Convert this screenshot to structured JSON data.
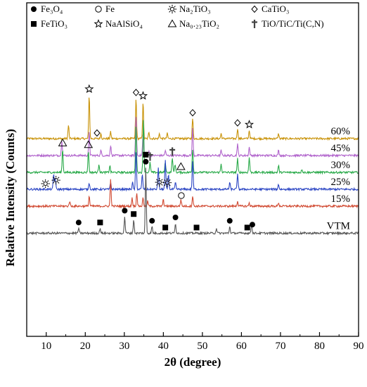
{
  "chart_data": {
    "type": "line",
    "xlabel": "2θ (degree)",
    "ylabel": "Relative Intensity (Counts)",
    "xlim": [
      5,
      90
    ],
    "xticks": [
      "10",
      "20",
      "30",
      "40",
      "50",
      "60",
      "70",
      "80",
      "90"
    ],
    "grid": false,
    "legend_position": "top",
    "legend": [
      {
        "symbol": "filled-circle",
        "label": "Fe₃O₄"
      },
      {
        "symbol": "open-circle",
        "label": "Fe"
      },
      {
        "symbol": "sun",
        "label": "Na₂TiO₃"
      },
      {
        "symbol": "open-diamond",
        "label": "CaTiO₃"
      },
      {
        "symbol": "filled-square",
        "label": "FeTiO₃"
      },
      {
        "symbol": "open-star",
        "label": "NaAlSiO₄"
      },
      {
        "symbol": "open-triangle",
        "label": "Na₀.₂₃TiO₂"
      },
      {
        "symbol": "dagger",
        "label": "TiO/TiC/Ti(C,N)"
      }
    ],
    "series": [
      {
        "name": "60%",
        "color": "#c9930a",
        "baseline": 2.0,
        "peaks": [
          [
            15.7,
            0.8
          ],
          [
            21.0,
            2.6
          ],
          [
            24.0,
            0.3
          ],
          [
            26.5,
            0.4
          ],
          [
            33.0,
            2.4
          ],
          [
            34.8,
            2.2
          ],
          [
            36.3,
            0.4
          ],
          [
            39.0,
            0.3
          ],
          [
            41.0,
            0.3
          ],
          [
            47.5,
            1.2
          ],
          [
            54.8,
            0.3
          ],
          [
            59.0,
            0.6
          ],
          [
            62.0,
            0.5
          ],
          [
            69.5,
            0.3
          ]
        ]
      },
      {
        "name": "45%",
        "color": "#b164cc",
        "baseline": 1.0,
        "peaks": [
          [
            14.0,
            0.9
          ],
          [
            21.0,
            1.4
          ],
          [
            24.0,
            0.3
          ],
          [
            26.5,
            0.6
          ],
          [
            33.0,
            2.4
          ],
          [
            34.8,
            1.3
          ],
          [
            36.3,
            0.3
          ],
          [
            40.5,
            0.3
          ],
          [
            47.5,
            1.6
          ],
          [
            54.8,
            0.3
          ],
          [
            59.0,
            0.7
          ],
          [
            62.0,
            0.5
          ],
          [
            69.5,
            0.3
          ]
        ]
      },
      {
        "name": "30%",
        "color": "#2aaa4a",
        "baseline": 0.0,
        "peaks": [
          [
            14.2,
            1.4
          ],
          [
            20.8,
            1.3
          ],
          [
            23.5,
            0.5
          ],
          [
            26.3,
            0.4
          ],
          [
            33.0,
            2.8
          ],
          [
            34.9,
            3.2
          ],
          [
            36.6,
            0.6
          ],
          [
            40.5,
            0.6
          ],
          [
            42.3,
            0.9
          ],
          [
            43.0,
            0.5
          ],
          [
            47.5,
            1.4
          ],
          [
            54.8,
            0.5
          ],
          [
            59.0,
            0.8
          ],
          [
            62.0,
            0.9
          ],
          [
            69.5,
            0.4
          ],
          [
            75.5,
            0.2
          ]
        ]
      },
      {
        "name": "25%",
        "color": "#2c46c4",
        "baseline": -1.0,
        "peaks": [
          [
            11.9,
            0.9
          ],
          [
            12.3,
            0.7
          ],
          [
            21.0,
            0.4
          ],
          [
            26.5,
            0.4
          ],
          [
            32.1,
            0.4
          ],
          [
            33.0,
            2.3
          ],
          [
            34.6,
            0.9
          ],
          [
            38.7,
            1.3
          ],
          [
            40.5,
            1.7
          ],
          [
            41.3,
            0.9
          ],
          [
            43.1,
            0.4
          ],
          [
            47.5,
            1.7
          ],
          [
            57.0,
            0.4
          ],
          [
            59.0,
            0.9
          ],
          [
            69.5,
            0.3
          ]
        ]
      },
      {
        "name": "15%",
        "color": "#d14a32",
        "baseline": -2.0,
        "peaks": [
          [
            16.0,
            0.3
          ],
          [
            21.0,
            0.6
          ],
          [
            26.5,
            1.6
          ],
          [
            32.0,
            0.5
          ],
          [
            33.2,
            0.8
          ],
          [
            34.8,
            0.5
          ],
          [
            36.0,
            0.3
          ],
          [
            40.0,
            0.4
          ],
          [
            44.5,
            0.4
          ],
          [
            47.5,
            0.6
          ],
          [
            59.0,
            0.3
          ],
          [
            62.0,
            0.2
          ],
          [
            69.5,
            0.2
          ]
        ]
      },
      {
        "name": "VTM",
        "color": "#555555",
        "baseline": -3.6,
        "peaks": [
          [
            18.3,
            0.3
          ],
          [
            23.8,
            0.3
          ],
          [
            30.1,
            1.0
          ],
          [
            32.4,
            0.8
          ],
          [
            35.5,
            3.9
          ],
          [
            37.1,
            0.4
          ],
          [
            43.1,
            0.6
          ],
          [
            53.6,
            0.3
          ],
          [
            57.0,
            0.4
          ],
          [
            62.6,
            0.6
          ]
        ]
      }
    ],
    "markers": [
      {
        "series": "60%",
        "symbol": "open-star",
        "x": 21.0
      },
      {
        "series": "60%",
        "symbol": "open-diamond",
        "x": 23.0
      },
      {
        "series": "60%",
        "symbol": "open-diamond",
        "x": 33.0
      },
      {
        "series": "60%",
        "symbol": "open-star",
        "x": 34.8
      },
      {
        "series": "60%",
        "symbol": "open-diamond",
        "x": 47.5
      },
      {
        "series": "60%",
        "symbol": "open-diamond",
        "x": 59.0
      },
      {
        "series": "60%",
        "symbol": "open-star",
        "x": 62.0
      },
      {
        "series": "30%",
        "symbol": "open-triangle",
        "x": 14.2
      },
      {
        "series": "30%",
        "symbol": "open-triangle",
        "x": 20.8
      },
      {
        "series": "30%",
        "symbol": "dagger",
        "x": 36.6
      },
      {
        "series": "30%",
        "symbol": "dagger",
        "x": 42.3
      },
      {
        "series": "30%",
        "symbol": "open-triangle",
        "x": 44.5
      },
      {
        "series": "25%",
        "symbol": "sun",
        "x": 9.8
      },
      {
        "series": "25%",
        "symbol": "sun",
        "x": 12.5
      },
      {
        "series": "25%",
        "symbol": "sun",
        "x": 39.0
      },
      {
        "series": "25%",
        "symbol": "sun",
        "x": 41.0
      },
      {
        "series": "15%",
        "symbol": "open-circle",
        "x": 44.6
      },
      {
        "series": "VTM",
        "symbol": "filled-circle",
        "x": 18.3
      },
      {
        "series": "VTM",
        "symbol": "filled-square",
        "x": 23.8
      },
      {
        "series": "VTM",
        "symbol": "filled-circle",
        "x": 30.1
      },
      {
        "series": "VTM",
        "symbol": "filled-square",
        "x": 32.4
      },
      {
        "series": "VTM",
        "symbol": "filled-circle",
        "x": 35.5
      },
      {
        "series": "VTM",
        "symbol": "filled-square",
        "x": 35.5
      },
      {
        "series": "VTM",
        "symbol": "filled-circle",
        "x": 37.1
      },
      {
        "series": "VTM",
        "symbol": "filled-square",
        "x": 40.5
      },
      {
        "series": "VTM",
        "symbol": "filled-circle",
        "x": 43.1
      },
      {
        "series": "VTM",
        "symbol": "filled-square",
        "x": 48.5
      },
      {
        "series": "VTM",
        "symbol": "filled-circle",
        "x": 57.0
      },
      {
        "series": "VTM",
        "symbol": "filled-square",
        "x": 61.5
      },
      {
        "series": "VTM",
        "symbol": "filled-circle",
        "x": 62.8
      }
    ]
  }
}
